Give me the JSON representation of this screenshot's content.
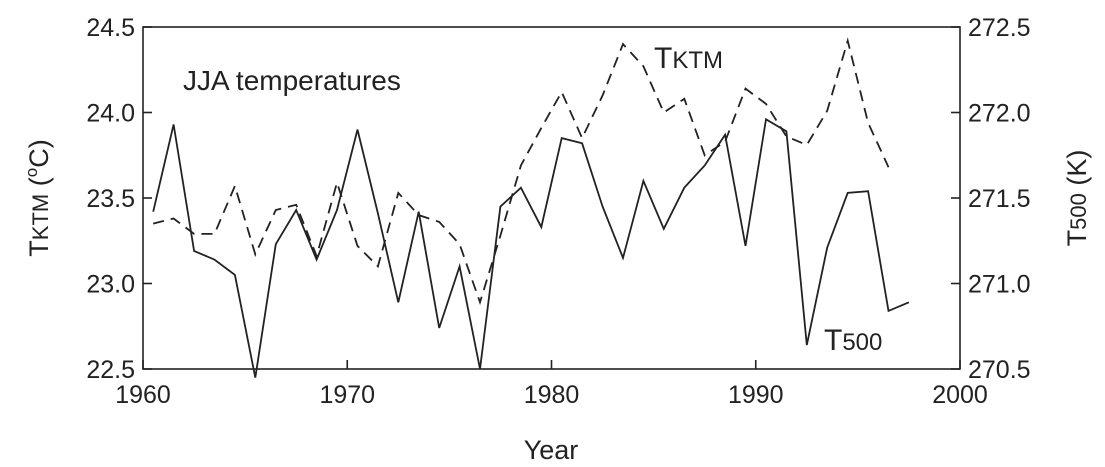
{
  "chart_data": {
    "type": "line",
    "title": "JJA temperatures",
    "xlabel": "Year",
    "ylabel_left": {
      "main": "T",
      "sub": "KTM",
      "unit_open": " (",
      "unit_sup": "o",
      "unit_close": "C)"
    },
    "ylabel_right": {
      "main": "T",
      "sub": "500",
      "unit": " (K)"
    },
    "xlim": [
      1960,
      2000
    ],
    "ylim_left": [
      22.5,
      24.5
    ],
    "ylim_right": [
      270.5,
      272.5
    ],
    "x_ticks": [
      "1960",
      "1970",
      "1980",
      "1990",
      "2000"
    ],
    "y_ticks_left": [
      "22.5",
      "23.0",
      "23.5",
      "24.0",
      "24.5"
    ],
    "y_ticks_right": [
      "270.5",
      "271.0",
      "271.5",
      "272.0",
      "272.5"
    ],
    "grid": false,
    "legend": "none",
    "series": [
      {
        "name": "TKTM",
        "label_main": "T",
        "label_sub": "KTM",
        "axis": "left",
        "style": "dashed",
        "color": "#222222",
        "x": [
          1960.5,
          1961.5,
          1962.5,
          1963.5,
          1964.5,
          1965.5,
          1966.5,
          1967.5,
          1968.5,
          1969.5,
          1970.5,
          1971.5,
          1972.5,
          1973.5,
          1974.5,
          1975.5,
          1976.5,
          1977.5,
          1978.5,
          1979.5,
          1980.5,
          1981.5,
          1982.5,
          1983.5,
          1984.5,
          1985.5,
          1986.5,
          1987.5,
          1988.5,
          1989.5,
          1990.5,
          1991.5,
          1992.5,
          1993.5,
          1994.5,
          1995.5,
          1996.5
        ],
        "y": [
          23.35,
          23.38,
          23.29,
          23.29,
          23.57,
          23.17,
          23.43,
          23.46,
          23.16,
          23.59,
          23.22,
          23.1,
          23.53,
          23.4,
          23.36,
          23.23,
          22.89,
          23.28,
          23.69,
          23.91,
          24.12,
          23.85,
          24.1,
          24.4,
          24.27,
          24.0,
          24.08,
          23.75,
          23.83,
          24.14,
          24.05,
          23.86,
          23.81,
          24.01,
          24.42,
          23.94,
          23.68
        ]
      },
      {
        "name": "T500",
        "label_main": "T",
        "label_sub": "500",
        "axis": "right",
        "style": "solid",
        "color": "#222222",
        "x": [
          1960.5,
          1961.5,
          1962.5,
          1963.5,
          1964.5,
          1965.5,
          1966.5,
          1967.5,
          1968.5,
          1969.5,
          1970.5,
          1971.5,
          1972.5,
          1973.5,
          1974.5,
          1975.5,
          1976.5,
          1977.5,
          1978.5,
          1979.5,
          1980.5,
          1981.5,
          1982.5,
          1983.5,
          1984.5,
          1985.5,
          1986.5,
          1987.5,
          1988.5,
          1989.5,
          1990.5,
          1991.5,
          1992.5,
          1993.5,
          1994.5,
          1995.5,
          1996.5,
          1997.5
        ],
        "y": [
          271.42,
          271.93,
          271.19,
          271.14,
          271.05,
          270.45,
          271.23,
          271.43,
          271.14,
          271.43,
          271.9,
          271.41,
          270.89,
          271.42,
          270.74,
          271.1,
          270.5,
          271.45,
          271.56,
          271.33,
          271.85,
          271.82,
          271.45,
          271.15,
          271.6,
          271.32,
          271.56,
          271.69,
          271.87,
          271.22,
          271.96,
          271.89,
          270.64,
          271.21,
          271.53,
          271.54,
          270.84,
          270.89
        ]
      }
    ]
  }
}
